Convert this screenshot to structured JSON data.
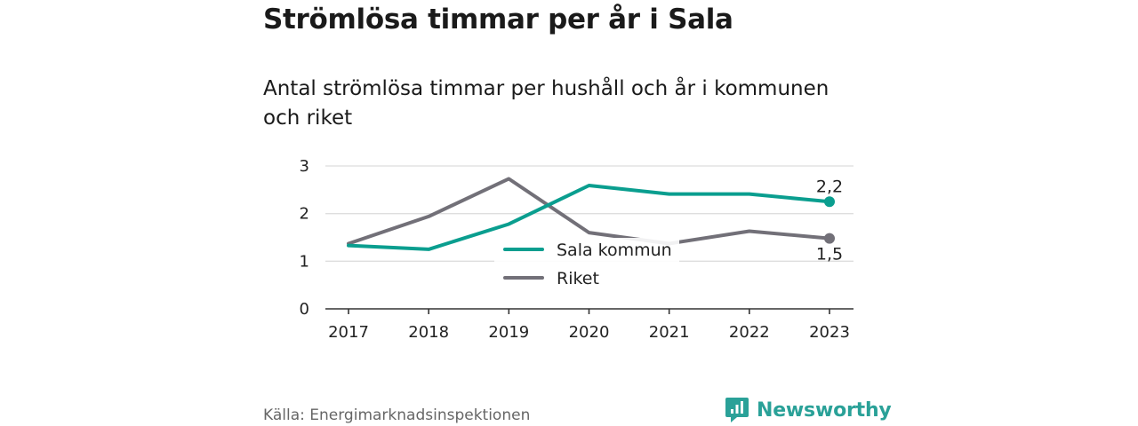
{
  "header": {
    "title": "Strömlösa timmar per år i Sala",
    "subtitle": "Antal strömlösa timmar per hushåll och år i kommunen och riket"
  },
  "footer": {
    "source": "Källa: Energimarknadsinspektionen",
    "brand": "Newsworthy",
    "brand_icon": "newsworthy-logo-icon"
  },
  "colors": {
    "sala": "#0a9e8f",
    "riket": "#727078",
    "brand": "#2aa198"
  },
  "chart_data": {
    "type": "line",
    "title": "Strömlösa timmar per år i Sala",
    "subtitle": "Antal strömlösa timmar per hushåll och år i kommunen och riket",
    "x": [
      "2017",
      "2018",
      "2019",
      "2020",
      "2021",
      "2022",
      "2023"
    ],
    "ylim": [
      0,
      3
    ],
    "yticks": [
      "0",
      "1",
      "2",
      "3"
    ],
    "grid": true,
    "legend_position": "center",
    "series": [
      {
        "name": "Sala kommun",
        "color": "#0a9e8f",
        "values": [
          1.33,
          1.25,
          1.78,
          2.59,
          2.41,
          2.41,
          2.25
        ],
        "end_label": "2,2"
      },
      {
        "name": "Riket",
        "color": "#727078",
        "values": [
          1.37,
          1.94,
          2.73,
          1.6,
          1.37,
          1.63,
          1.48
        ],
        "end_label": "1,5"
      }
    ]
  }
}
